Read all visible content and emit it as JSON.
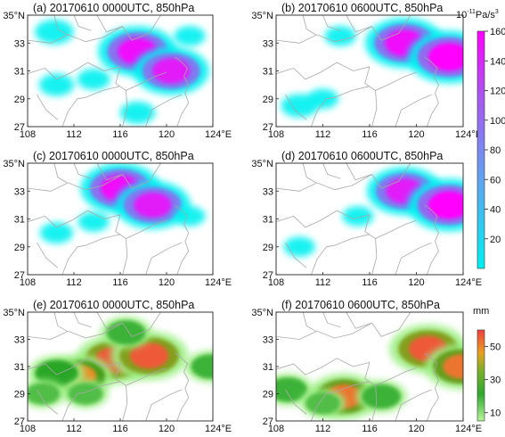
{
  "chart_data": [
    {
      "type": "heatmap",
      "panel": "(a) 20170610 0000UTC, 850hPa",
      "title": "(a) 20170610 0000UTC, 850hPa",
      "x_ticks": [
        "108",
        "112",
        "116",
        "120",
        "124°E"
      ],
      "y_ticks": [
        "27",
        "29",
        "31",
        "33",
        "35°N"
      ],
      "xlim": [
        108,
        124
      ],
      "ylim": [
        27,
        35
      ],
      "colorbar": "cb1",
      "blobs": [
        {
          "lon": 117.5,
          "lat": 32.4,
          "value": 150
        },
        {
          "lon": 120.4,
          "lat": 31.0,
          "value": 140
        },
        {
          "lon": 110.3,
          "lat": 33.8,
          "value": 40
        },
        {
          "lon": 110.5,
          "lat": 30.0,
          "value": 30
        },
        {
          "lon": 113.7,
          "lat": 30.4,
          "value": 25
        },
        {
          "lon": 117.5,
          "lat": 28.0,
          "value": 30
        },
        {
          "lon": 122.0,
          "lat": 33.5,
          "value": 20
        }
      ]
    },
    {
      "type": "heatmap",
      "panel": "(b) 20170610 0600UTC, 850hPa",
      "title": "(b) 20170610 0600UTC, 850hPa",
      "x_ticks": [
        "108",
        "112",
        "116",
        "120",
        "124°E"
      ],
      "y_ticks": [
        "27",
        "29",
        "31",
        "33",
        "35°N"
      ],
      "xlim": [
        108,
        124
      ],
      "ylim": [
        27,
        35
      ],
      "colorbar": "cb1",
      "blobs": [
        {
          "lon": 119.0,
          "lat": 33.0,
          "value": 150
        },
        {
          "lon": 122.8,
          "lat": 32.0,
          "value": 160
        },
        {
          "lon": 110.0,
          "lat": 28.5,
          "value": 35
        },
        {
          "lon": 112.0,
          "lat": 29.0,
          "value": 20
        },
        {
          "lon": 113.5,
          "lat": 33.5,
          "value": 20
        }
      ]
    },
    {
      "type": "heatmap",
      "panel": "(c) 20170610 0000UTC, 850hPa",
      "title": "(c) 20170610 0000UTC, 850hPa",
      "x_ticks": [
        "108",
        "112",
        "116",
        "120",
        "124°E"
      ],
      "y_ticks": [
        "27",
        "29",
        "31",
        "33",
        "35°N"
      ],
      "xlim": [
        108,
        124
      ],
      "ylim": [
        27,
        35
      ],
      "colorbar": "cb1",
      "blobs": [
        {
          "lon": 116.0,
          "lat": 33.2,
          "value": 150
        },
        {
          "lon": 118.8,
          "lat": 32.0,
          "value": 140
        },
        {
          "lon": 110.5,
          "lat": 30.0,
          "value": 25
        },
        {
          "lon": 113.7,
          "lat": 30.8,
          "value": 20
        },
        {
          "lon": 122.0,
          "lat": 31.2,
          "value": 20
        }
      ]
    },
    {
      "type": "heatmap",
      "panel": "(d) 20170610 0600UTC, 850hPa",
      "title": "(d) 20170610 0600UTC, 850hPa",
      "x_ticks": [
        "108",
        "112",
        "116",
        "120",
        "124°E"
      ],
      "y_ticks": [
        "27",
        "29",
        "31",
        "33",
        "35°N"
      ],
      "xlim": [
        108,
        124
      ],
      "ylim": [
        27,
        35
      ],
      "colorbar": "cb1",
      "blobs": [
        {
          "lon": 119.0,
          "lat": 33.0,
          "value": 140
        },
        {
          "lon": 122.8,
          "lat": 32.0,
          "value": 160
        },
        {
          "lon": 115.0,
          "lat": 31.2,
          "value": 20
        },
        {
          "lon": 110.0,
          "lat": 29.0,
          "value": 20
        }
      ]
    },
    {
      "type": "heatmap",
      "panel": "(e) 20170610 0000UTC, 850hPa",
      "title": "(e) 20170610 0000UTC, 850hPa",
      "x_ticks": [
        "108",
        "112",
        "116",
        "120",
        "124°E"
      ],
      "y_ticks": [
        "27",
        "29",
        "31",
        "33",
        "35°N"
      ],
      "xlim": [
        108,
        124
      ],
      "ylim": [
        27,
        35
      ],
      "colorbar": "cb2",
      "blobs": [
        {
          "lon": 115.5,
          "lat": 31.5,
          "value": 55
        },
        {
          "lon": 118.5,
          "lat": 31.8,
          "value": 55
        },
        {
          "lon": 112.5,
          "lat": 30.3,
          "value": 45
        },
        {
          "lon": 110.5,
          "lat": 30.5,
          "value": 35
        },
        {
          "lon": 109.3,
          "lat": 29.0,
          "value": 25
        },
        {
          "lon": 116.5,
          "lat": 33.5,
          "value": 30
        },
        {
          "lon": 113.0,
          "lat": 29.0,
          "value": 25
        },
        {
          "lon": 123.8,
          "lat": 31.0,
          "value": 30
        }
      ]
    },
    {
      "type": "heatmap",
      "panel": "(f) 20170610 0600UTC, 850hPa",
      "title": "(f) 20170610 0600UTC, 850hPa",
      "x_ticks": [
        "108",
        "112",
        "116",
        "120",
        "124°E"
      ],
      "y_ticks": [
        "27",
        "29",
        "31",
        "33",
        "35°N"
      ],
      "xlim": [
        108,
        124
      ],
      "ylim": [
        27,
        35
      ],
      "colorbar": "cb2",
      "blobs": [
        {
          "lon": 121.0,
          "lat": 32.3,
          "value": 55
        },
        {
          "lon": 123.8,
          "lat": 31.0,
          "value": 50
        },
        {
          "lon": 113.8,
          "lat": 28.8,
          "value": 50
        },
        {
          "lon": 109.0,
          "lat": 29.3,
          "value": 30
        },
        {
          "lon": 117.0,
          "lat": 28.8,
          "value": 30
        },
        {
          "lon": 112.0,
          "lat": 28.3,
          "value": 25
        }
      ]
    }
  ],
  "colorbars": {
    "cb1": {
      "unit_main": "10",
      "unit_exp": "-11",
      "unit_tail": "Pa/s",
      "unit_tail_exp": "3",
      "ticks": [
        "20",
        "40",
        "60",
        "80",
        "100",
        "120",
        "140",
        "160"
      ],
      "range": [
        0,
        160
      ],
      "colors": [
        "#00f0f0",
        "#5a9cf0",
        "#b050f0",
        "#ff00ff"
      ]
    },
    "cb2": {
      "unit": "mm",
      "ticks": [
        "10",
        "30",
        "50"
      ],
      "range": [
        5,
        60
      ],
      "colors": [
        "#9dee84",
        "#1e9e1e",
        "#e8a020",
        "#f04040"
      ]
    }
  }
}
